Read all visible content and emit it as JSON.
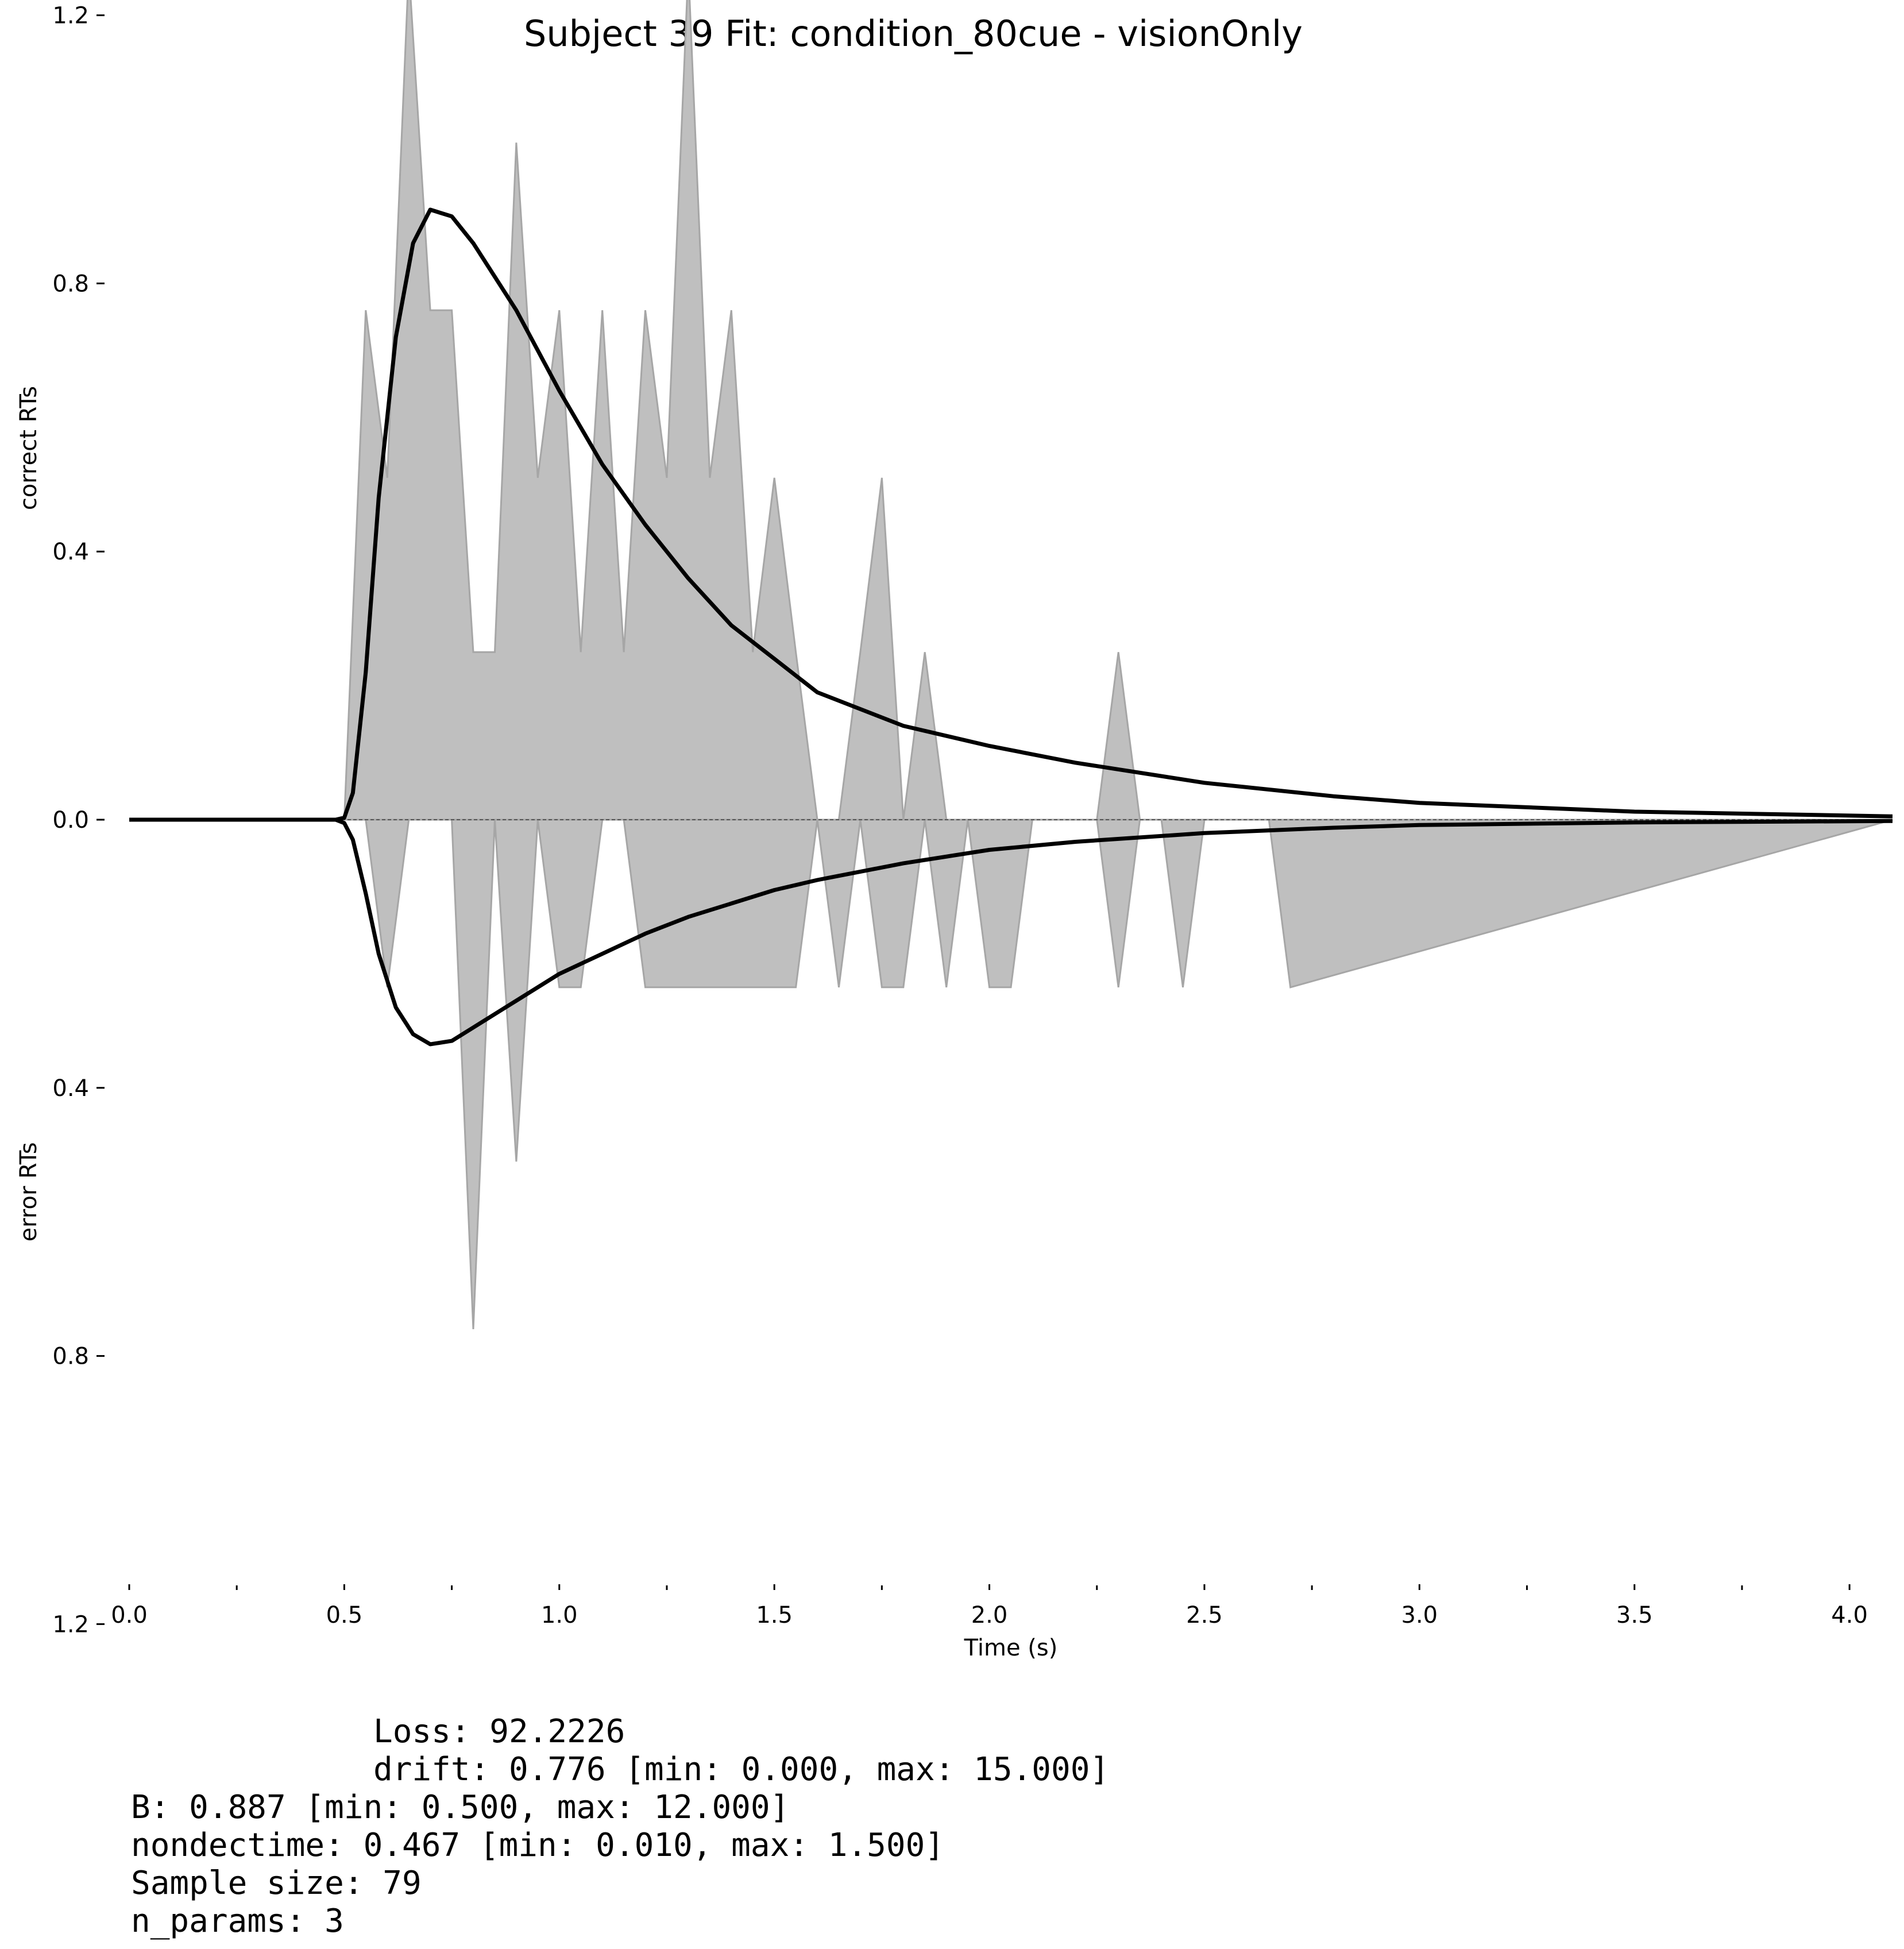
{
  "chart_data": {
    "type": "area",
    "title": "Subject 39 Fit: condition_80cue - visionOnly",
    "xlabel": "Time (s)",
    "ylabel_top": "correct RTs",
    "ylabel_bottom": "error RTs",
    "xlim": [
      0,
      4.1
    ],
    "ylim_top": [
      0,
      1.2
    ],
    "ylim_bottom": [
      0,
      1.2
    ],
    "x_ticks": [
      "0.0",
      "0.5",
      "1.0",
      "1.5",
      "2.0",
      "2.5",
      "3.0",
      "3.5",
      "4.0"
    ],
    "y_ticks_top": [
      "0.0",
      "0.4",
      "0.8",
      "1.2"
    ],
    "y_ticks_bottom": [
      "0.4",
      "0.8",
      "1.2"
    ],
    "correct_histogram": {
      "x": [
        0.0,
        0.5,
        0.55,
        0.6,
        0.65,
        0.7,
        0.75,
        0.8,
        0.85,
        0.9,
        0.95,
        1.0,
        1.05,
        1.1,
        1.15,
        1.2,
        1.25,
        1.3,
        1.35,
        1.4,
        1.45,
        1.5,
        1.55,
        1.6,
        1.65,
        1.7,
        1.75,
        1.8,
        1.85,
        1.9,
        1.95,
        2.2,
        2.25,
        2.3,
        2.35,
        2.4,
        4.1
      ],
      "y": [
        0.0,
        0.0,
        0.76,
        0.51,
        1.27,
        0.76,
        0.76,
        0.25,
        0.25,
        1.01,
        0.51,
        0.76,
        0.25,
        0.76,
        0.25,
        0.76,
        0.51,
        1.27,
        0.51,
        0.76,
        0.25,
        0.51,
        0.25,
        0.0,
        0.0,
        0.25,
        0.51,
        0.0,
        0.25,
        0.0,
        0.0,
        0.0,
        0.0,
        0.25,
        0.0,
        0.0,
        0.0
      ]
    },
    "error_histogram": {
      "x": [
        0.0,
        0.5,
        0.55,
        0.6,
        0.65,
        0.7,
        0.75,
        0.8,
        0.85,
        0.9,
        0.95,
        1.0,
        1.05,
        1.1,
        1.15,
        1.2,
        1.25,
        1.3,
        1.35,
        1.4,
        1.45,
        1.5,
        1.55,
        1.6,
        1.65,
        1.7,
        1.75,
        1.8,
        1.85,
        1.9,
        1.95,
        2.0,
        2.05,
        2.1,
        2.15,
        2.2,
        2.25,
        2.3,
        2.35,
        2.4,
        2.45,
        2.5,
        2.55,
        2.6,
        2.65,
        2.7,
        4.1
      ],
      "y": [
        0.0,
        0.0,
        0.0,
        0.25,
        0.0,
        0.0,
        0.0,
        0.76,
        0.0,
        0.51,
        0.0,
        0.25,
        0.25,
        0.0,
        0.0,
        0.25,
        0.25,
        0.25,
        0.25,
        0.25,
        0.25,
        0.25,
        0.25,
        0.0,
        0.25,
        0.0,
        0.25,
        0.25,
        0.0,
        0.25,
        0.0,
        0.25,
        0.25,
        0.0,
        0.0,
        0.0,
        0.0,
        0.25,
        0.0,
        0.0,
        0.25,
        0.0,
        0.0,
        0.0,
        0.0,
        0.25,
        0.0
      ]
    },
    "fit_correct": {
      "x": [
        0.0,
        0.48,
        0.5,
        0.52,
        0.55,
        0.58,
        0.62,
        0.66,
        0.7,
        0.75,
        0.8,
        0.9,
        1.0,
        1.1,
        1.2,
        1.3,
        1.4,
        1.5,
        1.6,
        1.8,
        2.0,
        2.2,
        2.5,
        2.8,
        3.0,
        3.5,
        4.1
      ],
      "y": [
        0.0,
        0.0,
        0.003,
        0.04,
        0.22,
        0.48,
        0.72,
        0.86,
        0.91,
        0.9,
        0.86,
        0.76,
        0.64,
        0.53,
        0.44,
        0.36,
        0.29,
        0.24,
        0.19,
        0.14,
        0.11,
        0.085,
        0.055,
        0.035,
        0.025,
        0.012,
        0.005
      ]
    },
    "fit_error": {
      "x": [
        0.0,
        0.48,
        0.5,
        0.52,
        0.55,
        0.58,
        0.62,
        0.66,
        0.7,
        0.75,
        0.8,
        0.9,
        1.0,
        1.1,
        1.2,
        1.3,
        1.4,
        1.5,
        1.6,
        1.8,
        2.0,
        2.2,
        2.5,
        2.8,
        3.0,
        3.5,
        4.1
      ],
      "y": [
        0.0,
        0.0,
        0.005,
        0.03,
        0.11,
        0.2,
        0.28,
        0.32,
        0.335,
        0.33,
        0.31,
        0.27,
        0.23,
        0.2,
        0.17,
        0.145,
        0.125,
        0.105,
        0.09,
        0.065,
        0.045,
        0.033,
        0.02,
        0.012,
        0.008,
        0.004,
        0.002
      ]
    },
    "colors": {
      "histogram_fill": "#bfbfbf",
      "histogram_edge": "#a6a6a6",
      "fit_line": "#000000"
    },
    "grid": false,
    "legend": "none"
  },
  "stats": {
    "loss": "Loss: 92.2226",
    "drift": "drift: 0.776 [min: 0.000, max: 15.000]",
    "b": "B: 0.887 [min: 0.500, max: 12.000]",
    "nondectime": "nondectime: 0.467 [min: 0.010, max: 1.500]",
    "sample_size": "Sample size: 79",
    "n_params": "n_params: 3"
  }
}
